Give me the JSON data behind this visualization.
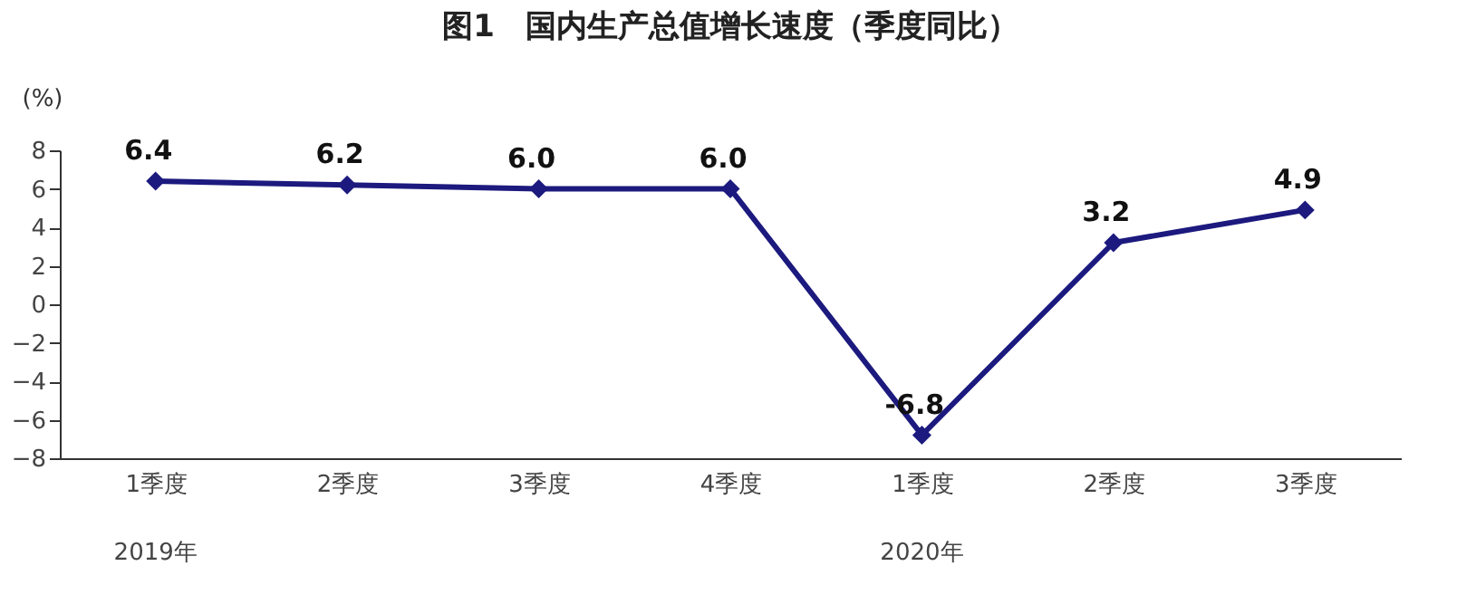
{
  "chart_data": {
    "type": "line",
    "title": "图1　国内生产总值增长速度（季度同比）",
    "ylabel": "(%)",
    "categories": [
      "1季度",
      "2季度",
      "3季度",
      "4季度",
      "1季度",
      "2季度",
      "3季度"
    ],
    "series": [
      {
        "color": "#1c1a7e",
        "values": [
          6.4,
          6.2,
          6.0,
          6.0,
          -6.8,
          3.2,
          4.9
        ]
      }
    ],
    "ylim": [
      -8,
      8
    ],
    "yticks": [
      -8,
      -6,
      -4,
      -2,
      0,
      2,
      4,
      6,
      8
    ],
    "grid": false,
    "marker": "diamond",
    "line_style": "solid",
    "value_labels": [
      "6.4",
      "6.2",
      "6.0",
      "6.0",
      "-6.8",
      "3.2",
      "4.9"
    ],
    "annotations": [
      "2019年",
      "2020年"
    ]
  }
}
